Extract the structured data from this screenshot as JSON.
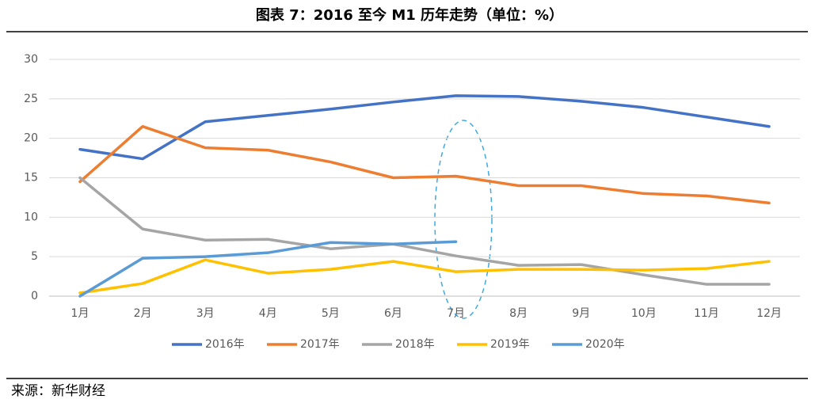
{
  "chart_data": {
    "type": "line",
    "title": "图表 7：2016 至今 M1 历年走势（单位：%）",
    "source": "来源：新华财经",
    "categories": [
      "1月",
      "2月",
      "3月",
      "4月",
      "5月",
      "6月",
      "7月",
      "8月",
      "9月",
      "10月",
      "11月",
      "12月"
    ],
    "series": [
      {
        "name": "2016年",
        "color": "#4472c4",
        "values": [
          18.6,
          17.4,
          22.1,
          22.9,
          23.7,
          24.6,
          25.4,
          25.3,
          24.7,
          23.9,
          22.7,
          21.5
        ]
      },
      {
        "name": "2017年",
        "color": "#ed7d31",
        "values": [
          14.5,
          21.5,
          18.8,
          18.5,
          17.0,
          15.0,
          15.2,
          14.0,
          14.0,
          13.0,
          12.7,
          11.8
        ]
      },
      {
        "name": "2018年",
        "color": "#a5a5a5",
        "values": [
          15.0,
          8.5,
          7.1,
          7.2,
          6.0,
          6.6,
          5.1,
          3.9,
          4.0,
          2.7,
          1.5,
          1.5
        ]
      },
      {
        "name": "2019年",
        "color": "#ffc000",
        "values": [
          0.4,
          1.6,
          4.6,
          2.9,
          3.4,
          4.4,
          3.1,
          3.4,
          3.4,
          3.3,
          3.5,
          4.4
        ]
      },
      {
        "name": "2020年",
        "color": "#5b9bd5",
        "values": [
          0.0,
          4.8,
          5.0,
          5.5,
          6.8,
          6.6,
          6.9,
          null,
          null,
          null,
          null,
          null
        ]
      }
    ],
    "ylim": [
      0,
      30
    ],
    "yticks": [
      0,
      5,
      10,
      15,
      20,
      25,
      30
    ],
    "grid": true,
    "legend": "bottom"
  }
}
